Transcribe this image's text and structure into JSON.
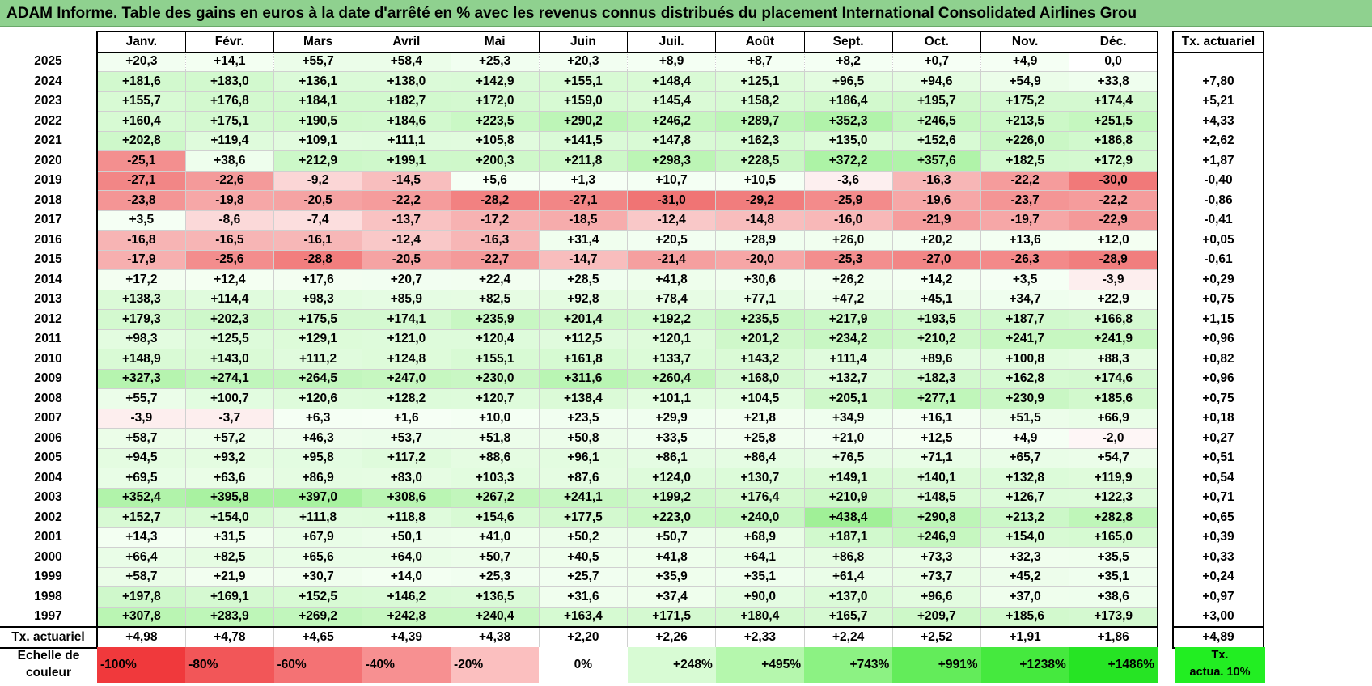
{
  "title": "ADAM Informe. Table des gains en euros à la date d'arrêté en % avec les revenus connus distribués du placement International Consolidated Airlines Grou",
  "months": [
    "Janv.",
    "Févr.",
    "Mars",
    "Avril",
    "Mai",
    "Juin",
    "Juil.",
    "Août",
    "Sept.",
    "Oct.",
    "Nov.",
    "Déc."
  ],
  "tx_header": "Tx. actuariel",
  "rows": [
    {
      "year": "2025",
      "values": [
        "+20,3",
        "+14,1",
        "+55,7",
        "+58,4",
        "+25,3",
        "+20,3",
        "+8,9",
        "+8,7",
        "+8,2",
        "+0,7",
        "+4,9",
        "0,0"
      ],
      "tx": ""
    },
    {
      "year": "2024",
      "values": [
        "+181,6",
        "+183,0",
        "+136,1",
        "+138,0",
        "+142,9",
        "+155,1",
        "+148,4",
        "+125,1",
        "+96,5",
        "+94,6",
        "+54,9",
        "+33,8"
      ],
      "tx": "+7,80"
    },
    {
      "year": "2023",
      "values": [
        "+155,7",
        "+176,8",
        "+184,1",
        "+182,7",
        "+172,0",
        "+159,0",
        "+145,4",
        "+158,2",
        "+186,4",
        "+195,7",
        "+175,2",
        "+174,4"
      ],
      "tx": "+5,21"
    },
    {
      "year": "2022",
      "values": [
        "+160,4",
        "+175,1",
        "+190,5",
        "+184,6",
        "+223,5",
        "+290,2",
        "+246,2",
        "+289,7",
        "+352,3",
        "+246,5",
        "+213,5",
        "+251,5"
      ],
      "tx": "+4,33"
    },
    {
      "year": "2021",
      "values": [
        "+202,8",
        "+119,4",
        "+109,1",
        "+111,1",
        "+105,8",
        "+141,5",
        "+147,8",
        "+162,3",
        "+135,0",
        "+152,6",
        "+226,0",
        "+186,8"
      ],
      "tx": "+2,62"
    },
    {
      "year": "2020",
      "values": [
        "-25,1",
        "+38,6",
        "+212,9",
        "+199,1",
        "+200,3",
        "+211,8",
        "+298,3",
        "+228,5",
        "+372,2",
        "+357,6",
        "+182,5",
        "+172,9"
      ],
      "tx": "+1,87"
    },
    {
      "year": "2019",
      "values": [
        "-27,1",
        "-22,6",
        "-9,2",
        "-14,5",
        "+5,6",
        "+1,3",
        "+10,7",
        "+10,5",
        "-3,6",
        "-16,3",
        "-22,2",
        "-30,0"
      ],
      "tx": "-0,40"
    },
    {
      "year": "2018",
      "values": [
        "-23,8",
        "-19,8",
        "-20,5",
        "-22,2",
        "-28,2",
        "-27,1",
        "-31,0",
        "-29,2",
        "-25,9",
        "-19,6",
        "-23,7",
        "-22,2"
      ],
      "tx": "-0,86"
    },
    {
      "year": "2017",
      "values": [
        "+3,5",
        "-8,6",
        "-7,4",
        "-13,7",
        "-17,2",
        "-18,5",
        "-12,4",
        "-14,8",
        "-16,0",
        "-21,9",
        "-19,7",
        "-22,9"
      ],
      "tx": "-0,41"
    },
    {
      "year": "2016",
      "values": [
        "-16,8",
        "-16,5",
        "-16,1",
        "-12,4",
        "-16,3",
        "+31,4",
        "+20,5",
        "+28,9",
        "+26,0",
        "+20,2",
        "+13,6",
        "+12,0"
      ],
      "tx": "+0,05"
    },
    {
      "year": "2015",
      "values": [
        "-17,9",
        "-25,6",
        "-28,8",
        "-20,5",
        "-22,7",
        "-14,7",
        "-21,4",
        "-20,0",
        "-25,3",
        "-27,0",
        "-26,3",
        "-28,9"
      ],
      "tx": "-0,61"
    },
    {
      "year": "2014",
      "values": [
        "+17,2",
        "+12,4",
        "+17,6",
        "+20,7",
        "+22,4",
        "+28,5",
        "+41,8",
        "+30,6",
        "+26,2",
        "+14,2",
        "+3,5",
        "-3,9"
      ],
      "tx": "+0,29"
    },
    {
      "year": "2013",
      "values": [
        "+138,3",
        "+114,4",
        "+98,3",
        "+85,9",
        "+82,5",
        "+92,8",
        "+78,4",
        "+77,1",
        "+47,2",
        "+45,1",
        "+34,7",
        "+22,9"
      ],
      "tx": "+0,75"
    },
    {
      "year": "2012",
      "values": [
        "+179,3",
        "+202,3",
        "+175,5",
        "+174,1",
        "+235,9",
        "+201,4",
        "+192,2",
        "+235,5",
        "+217,9",
        "+193,5",
        "+187,7",
        "+166,8"
      ],
      "tx": "+1,15"
    },
    {
      "year": "2011",
      "values": [
        "+98,3",
        "+125,5",
        "+129,1",
        "+121,0",
        "+120,4",
        "+112,5",
        "+120,1",
        "+201,2",
        "+234,2",
        "+210,2",
        "+241,7",
        "+241,9"
      ],
      "tx": "+0,96"
    },
    {
      "year": "2010",
      "values": [
        "+148,9",
        "+143,0",
        "+111,2",
        "+124,8",
        "+155,1",
        "+161,8",
        "+133,7",
        "+143,2",
        "+111,4",
        "+89,6",
        "+100,8",
        "+88,3"
      ],
      "tx": "+0,82"
    },
    {
      "year": "2009",
      "values": [
        "+327,3",
        "+274,1",
        "+264,5",
        "+247,0",
        "+230,0",
        "+311,6",
        "+260,4",
        "+168,0",
        "+132,7",
        "+182,3",
        "+162,8",
        "+174,6"
      ],
      "tx": "+0,96"
    },
    {
      "year": "2008",
      "values": [
        "+55,7",
        "+100,7",
        "+120,6",
        "+128,2",
        "+120,7",
        "+138,4",
        "+101,1",
        "+104,5",
        "+205,1",
        "+277,1",
        "+230,9",
        "+185,6"
      ],
      "tx": "+0,75"
    },
    {
      "year": "2007",
      "values": [
        "-3,9",
        "-3,7",
        "+6,3",
        "+1,6",
        "+10,0",
        "+23,5",
        "+29,9",
        "+21,8",
        "+34,9",
        "+16,1",
        "+51,5",
        "+66,9"
      ],
      "tx": "+0,18"
    },
    {
      "year": "2006",
      "values": [
        "+58,7",
        "+57,2",
        "+46,3",
        "+53,7",
        "+51,8",
        "+50,8",
        "+33,5",
        "+25,8",
        "+21,0",
        "+12,5",
        "+4,9",
        "-2,0"
      ],
      "tx": "+0,27"
    },
    {
      "year": "2005",
      "values": [
        "+94,5",
        "+93,2",
        "+95,8",
        "+117,2",
        "+88,6",
        "+96,1",
        "+86,1",
        "+86,4",
        "+76,5",
        "+71,1",
        "+65,7",
        "+54,7"
      ],
      "tx": "+0,51"
    },
    {
      "year": "2004",
      "values": [
        "+69,5",
        "+63,6",
        "+86,9",
        "+83,0",
        "+103,3",
        "+87,6",
        "+124,0",
        "+130,7",
        "+149,1",
        "+140,1",
        "+132,8",
        "+119,9"
      ],
      "tx": "+0,54"
    },
    {
      "year": "2003",
      "values": [
        "+352,4",
        "+395,8",
        "+397,0",
        "+308,6",
        "+267,2",
        "+241,1",
        "+199,2",
        "+176,4",
        "+210,9",
        "+148,5",
        "+126,7",
        "+122,3"
      ],
      "tx": "+0,71"
    },
    {
      "year": "2002",
      "values": [
        "+152,7",
        "+154,0",
        "+111,8",
        "+118,8",
        "+154,6",
        "+177,5",
        "+223,0",
        "+240,0",
        "+438,4",
        "+290,8",
        "+213,2",
        "+282,8"
      ],
      "tx": "+0,65"
    },
    {
      "year": "2001",
      "values": [
        "+14,3",
        "+31,5",
        "+67,9",
        "+50,1",
        "+41,0",
        "+50,2",
        "+50,7",
        "+68,9",
        "+187,1",
        "+246,9",
        "+154,0",
        "+165,0"
      ],
      "tx": "+0,39"
    },
    {
      "year": "2000",
      "values": [
        "+66,4",
        "+82,5",
        "+65,6",
        "+64,0",
        "+50,7",
        "+40,5",
        "+41,8",
        "+64,1",
        "+86,8",
        "+73,3",
        "+32,3",
        "+35,5"
      ],
      "tx": "+0,33"
    },
    {
      "year": "1999",
      "values": [
        "+58,7",
        "+21,9",
        "+30,7",
        "+14,0",
        "+25,3",
        "+25,7",
        "+35,9",
        "+35,1",
        "+61,4",
        "+73,7",
        "+45,2",
        "+35,1"
      ],
      "tx": "+0,24"
    },
    {
      "year": "1998",
      "values": [
        "+197,8",
        "+169,1",
        "+152,5",
        "+146,2",
        "+136,5",
        "+31,6",
        "+37,4",
        "+90,0",
        "+137,0",
        "+96,6",
        "+37,0",
        "+38,6"
      ],
      "tx": "+0,97"
    },
    {
      "year": "1997",
      "values": [
        "+307,8",
        "+283,9",
        "+269,2",
        "+242,8",
        "+240,4",
        "+163,4",
        "+171,5",
        "+180,4",
        "+165,7",
        "+209,7",
        "+185,6",
        "+173,9"
      ],
      "tx": "+3,00"
    }
  ],
  "summary": {
    "label": "Tx. actuariel",
    "values": [
      "+4,98",
      "+4,78",
      "+4,65",
      "+4,39",
      "+4,38",
      "+2,20",
      "+2,26",
      "+2,33",
      "+2,24",
      "+2,52",
      "+1,91",
      "+1,86"
    ],
    "tx": "+4,89"
  },
  "scale": {
    "label_line1": "Echelle de",
    "label_line2": "couleur",
    "steps": [
      {
        "text": "-100%",
        "color": "#f0393c"
      },
      {
        "text": "-80%",
        "color": "#f25658"
      },
      {
        "text": "-60%",
        "color": "#f47274"
      },
      {
        "text": "-40%",
        "color": "#f79091"
      },
      {
        "text": "-20%",
        "color": "#fbbfbf"
      },
      {
        "text": "0%",
        "color": "#ffffff"
      },
      {
        "text": "+248%",
        "color": "#d8fbd4"
      },
      {
        "text": "+495%",
        "color": "#b5f7ad"
      },
      {
        "text": "+743%",
        "color": "#8cf283"
      },
      {
        "text": "+991%",
        "color": "#63ec5a"
      },
      {
        "text": "+1238%",
        "color": "#45e93e"
      },
      {
        "text": "+1486%",
        "color": "#26e424"
      }
    ],
    "tx_line1": "Tx.",
    "tx_line2": "actua. 10%"
  }
}
